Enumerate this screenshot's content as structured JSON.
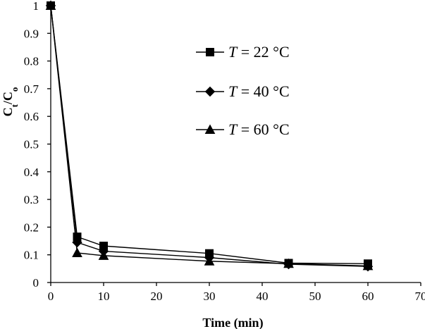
{
  "chart_data": {
    "type": "line",
    "title": "",
    "xlabel": "Time (min)",
    "ylabel_main": "C",
    "ylabel_sub1": "t",
    "ylabel_mid": "/C",
    "ylabel_sub2": "o",
    "xlim": [
      0,
      70
    ],
    "ylim": [
      0,
      1
    ],
    "xticks": [
      "0",
      "10",
      "20",
      "30",
      "40",
      "50",
      "60",
      "70"
    ],
    "yticks": [
      "0",
      "0.1",
      "0.2",
      "0.3",
      "0.4",
      "0.5",
      "0.6",
      "0.7",
      "0.8",
      "0.9",
      "1"
    ],
    "grid": false,
    "legend_position": "top-right",
    "series": [
      {
        "name": "T = 22 °C",
        "var": "T",
        "rest": " = 22 °C",
        "marker": "square",
        "x": [
          0,
          5,
          10,
          30,
          45,
          60
        ],
        "y": [
          1.0,
          0.165,
          0.132,
          0.105,
          0.07,
          0.068
        ]
      },
      {
        "name": "T = 40 °C",
        "var": "T",
        "rest": " = 40 °C",
        "marker": "diamond",
        "x": [
          0,
          5,
          10,
          30,
          45,
          60
        ],
        "y": [
          1.0,
          0.145,
          0.113,
          0.09,
          0.066,
          0.058
        ]
      },
      {
        "name": "T = 60 °C",
        "var": "T",
        "rest": " = 60 °C",
        "marker": "triangle",
        "x": [
          0,
          5,
          10,
          30,
          45,
          60
        ],
        "y": [
          1.0,
          0.107,
          0.097,
          0.077,
          0.068,
          0.06
        ]
      }
    ]
  }
}
